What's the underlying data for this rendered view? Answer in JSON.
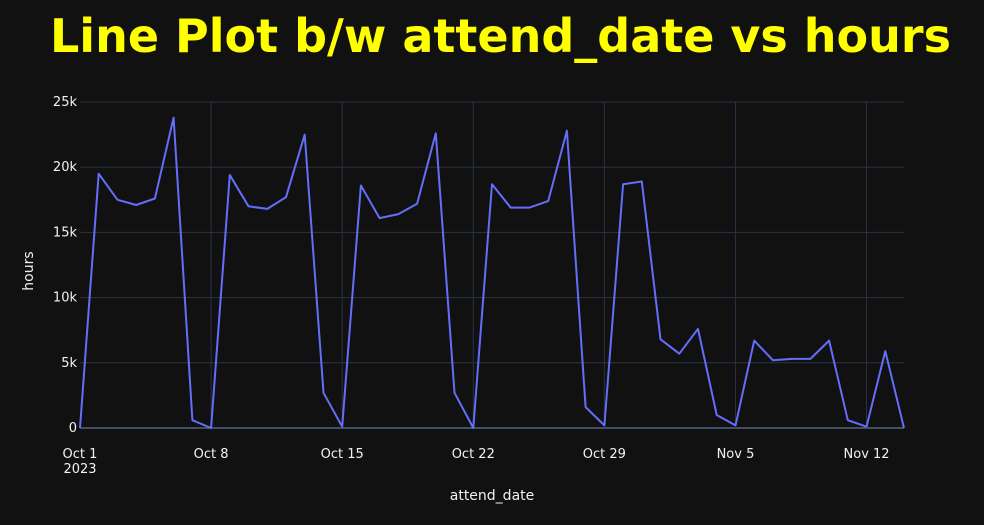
{
  "chart_data": {
    "type": "line",
    "title": "Line Plot b/w attend_date vs hours",
    "xlabel": "attend_date",
    "ylabel": "hours",
    "x_tick_labels": [
      "Oct 1",
      "Oct 8",
      "Oct 15",
      "Oct 22",
      "Oct 29",
      "Nov 5",
      "Nov 12"
    ],
    "x_tick_sublabel": "2023",
    "y_tick_labels": [
      "0",
      "5k",
      "10k",
      "15k",
      "20k",
      "25k"
    ],
    "ylim": [
      0,
      25000
    ],
    "xlim": [
      "2023-10-01",
      "2023-11-14"
    ],
    "grid": true,
    "line_color": "#636efa",
    "background": "#111111",
    "title_color": "#ffff00",
    "series": [
      {
        "x": [
          "2023-10-01",
          "2023-10-02",
          "2023-10-03",
          "2023-10-04",
          "2023-10-05",
          "2023-10-06",
          "2023-10-07",
          "2023-10-08",
          "2023-10-09",
          "2023-10-10",
          "2023-10-11",
          "2023-10-12",
          "2023-10-13",
          "2023-10-14",
          "2023-10-15",
          "2023-10-16",
          "2023-10-17",
          "2023-10-18",
          "2023-10-19",
          "2023-10-20",
          "2023-10-21",
          "2023-10-22",
          "2023-10-23",
          "2023-10-24",
          "2023-10-25",
          "2023-10-26",
          "2023-10-27",
          "2023-10-28",
          "2023-10-29",
          "2023-10-30",
          "2023-10-31",
          "2023-11-01",
          "2023-11-02",
          "2023-11-03",
          "2023-11-04",
          "2023-11-05",
          "2023-11-06",
          "2023-11-07",
          "2023-11-08",
          "2023-11-09",
          "2023-11-10",
          "2023-11-11",
          "2023-11-12",
          "2023-11-13",
          "2023-11-14"
        ],
        "y": [
          0,
          19500,
          17500,
          17100,
          17600,
          23800,
          600,
          0,
          19400,
          17000,
          16800,
          17700,
          22500,
          2700,
          100,
          18600,
          16100,
          16400,
          17200,
          22600,
          2700,
          0,
          18700,
          16900,
          16900,
          17400,
          22800,
          1600,
          200,
          18700,
          18900,
          6800,
          5700,
          7600,
          1000,
          200,
          6700,
          5200,
          5300,
          5300,
          6700,
          600,
          100,
          5900,
          0
        ]
      }
    ]
  }
}
